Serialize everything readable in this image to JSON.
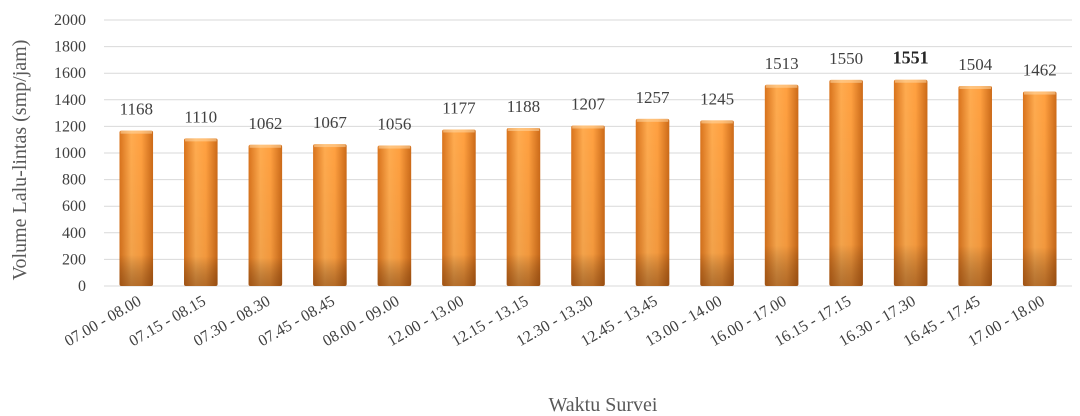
{
  "chart_data": {
    "type": "bar",
    "categories": [
      "07.00 - 08.00",
      "07.15 - 08.15",
      "07.30 - 08.30",
      "07.45 - 08.45",
      "08.00 - 09.00",
      "12.00 - 13.00",
      "12.15 - 13.15",
      "12.30 - 13.30",
      "12.45 - 13.45",
      "13.00 - 14.00",
      "16.00 - 17.00",
      "16.15 - 17.15",
      "16.30 - 17.30",
      "16.45 - 17.45",
      "17.00 - 18.00"
    ],
    "values": [
      1168,
      1110,
      1062,
      1067,
      1056,
      1177,
      1188,
      1207,
      1257,
      1245,
      1513,
      1550,
      1551,
      1504,
      1462
    ],
    "value_labels": [
      "1168",
      "1110",
      "1062",
      "1067",
      "1056",
      "1177",
      "1188",
      "1207",
      "1257",
      "1245",
      "1513",
      "1550",
      "1551",
      "1504",
      "1462"
    ],
    "highlight_index": 12,
    "xlabel": "Waktu Survei",
    "ylabel": "Volume Lalu-lintas (smp/jam)",
    "ylim": [
      0,
      2000
    ],
    "yticks": [
      0,
      200,
      400,
      600,
      800,
      1000,
      1200,
      1400,
      1600,
      1800,
      2000
    ],
    "ytick_labels": [
      "0",
      "200",
      "400",
      "600",
      "800",
      "1000",
      "1200",
      "1400",
      "1600",
      "1800",
      "2000"
    ],
    "grid": true,
    "legend": "none",
    "colors": {
      "bar_light": "#ffa64d",
      "bar_mid": "#f28c1e",
      "bar_dark": "#a8541a",
      "grid": "#d9d9d9"
    }
  }
}
